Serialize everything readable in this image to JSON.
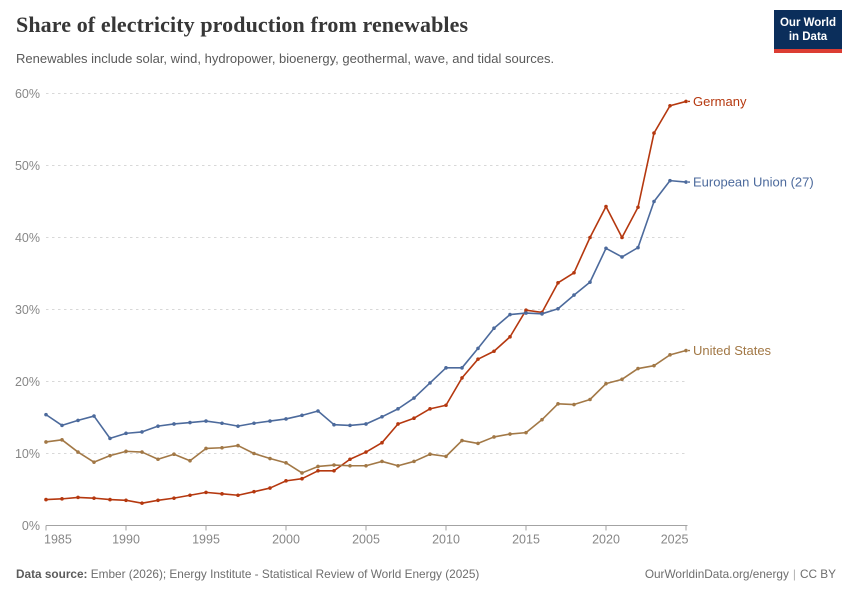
{
  "header": {
    "title": "Share of electricity production from renewables",
    "subtitle": "Renewables include solar, wind, hydropower, bioenergy, geothermal, wave, and tidal sources.",
    "logo": {
      "line1": "Our World",
      "line2": "in Data"
    }
  },
  "footer": {
    "source_label": "Data source:",
    "source_text": " Ember (2026); Energy Institute - Statistical Review of World Energy (2025)",
    "link": "OurWorldinData.org/energy",
    "separator": "|",
    "license": "CC BY"
  },
  "chart_data": {
    "type": "line",
    "x_start": 1985,
    "x": [
      1985,
      1986,
      1987,
      1988,
      1989,
      1990,
      1991,
      1992,
      1993,
      1994,
      1995,
      1996,
      1997,
      1998,
      1999,
      2000,
      2001,
      2002,
      2003,
      2004,
      2005,
      2006,
      2007,
      2008,
      2009,
      2010,
      2011,
      2012,
      2013,
      2014,
      2015,
      2016,
      2017,
      2018,
      2019,
      2020,
      2021,
      2022,
      2023,
      2024,
      2025
    ],
    "xticks": [
      1985,
      1990,
      1995,
      2000,
      2005,
      2010,
      2015,
      2020,
      2025
    ],
    "yticks": [
      0,
      10,
      20,
      30,
      40,
      50,
      60
    ],
    "ytick_suffix": "%",
    "xlim": [
      1985,
      2025
    ],
    "ylim": [
      0,
      60
    ],
    "grid": "dashed-horizontal",
    "legend_position": "line-end-labels",
    "colors": {
      "grid": "#d8d8d8",
      "axis": "#a3a3a3",
      "tick_label": "#878787"
    },
    "series": [
      {
        "name": "Germany",
        "color": "#b5380f",
        "values": [
          3.6,
          3.7,
          3.9,
          3.8,
          3.6,
          3.5,
          3.1,
          3.5,
          3.8,
          4.2,
          4.6,
          4.4,
          4.2,
          4.7,
          5.2,
          6.2,
          6.5,
          7.6,
          7.6,
          9.2,
          10.2,
          11.5,
          14.1,
          14.9,
          16.2,
          16.7,
          20.5,
          23.1,
          24.2,
          26.2,
          29.9,
          29.6,
          33.7,
          35.1,
          40.0,
          44.3,
          40.0,
          44.2,
          54.5,
          58.3,
          58.9
        ]
      },
      {
        "name": "European Union (27)",
        "color": "#4c6a9c",
        "values": [
          15.4,
          13.9,
          14.6,
          15.2,
          12.1,
          12.8,
          13.0,
          13.8,
          14.1,
          14.3,
          14.5,
          14.2,
          13.8,
          14.2,
          14.5,
          14.8,
          15.3,
          15.9,
          14.0,
          13.9,
          14.1,
          15.1,
          16.2,
          17.7,
          19.8,
          21.9,
          21.9,
          24.6,
          27.4,
          29.3,
          29.5,
          29.4,
          30.1,
          32.0,
          33.8,
          38.5,
          37.3,
          38.6,
          45.0,
          47.9,
          47.7
        ]
      },
      {
        "name": "United States",
        "color": "#a27846",
        "values": [
          11.6,
          11.9,
          10.2,
          8.8,
          9.7,
          10.3,
          10.2,
          9.2,
          9.9,
          9.0,
          10.7,
          10.8,
          11.1,
          10.0,
          9.3,
          8.7,
          7.3,
          8.2,
          8.4,
          8.3,
          8.3,
          8.9,
          8.3,
          8.9,
          9.9,
          9.6,
          11.8,
          11.4,
          12.3,
          12.7,
          12.9,
          14.7,
          16.9,
          16.8,
          17.5,
          19.7,
          20.3,
          21.8,
          22.2,
          23.7,
          24.3
        ]
      }
    ]
  }
}
